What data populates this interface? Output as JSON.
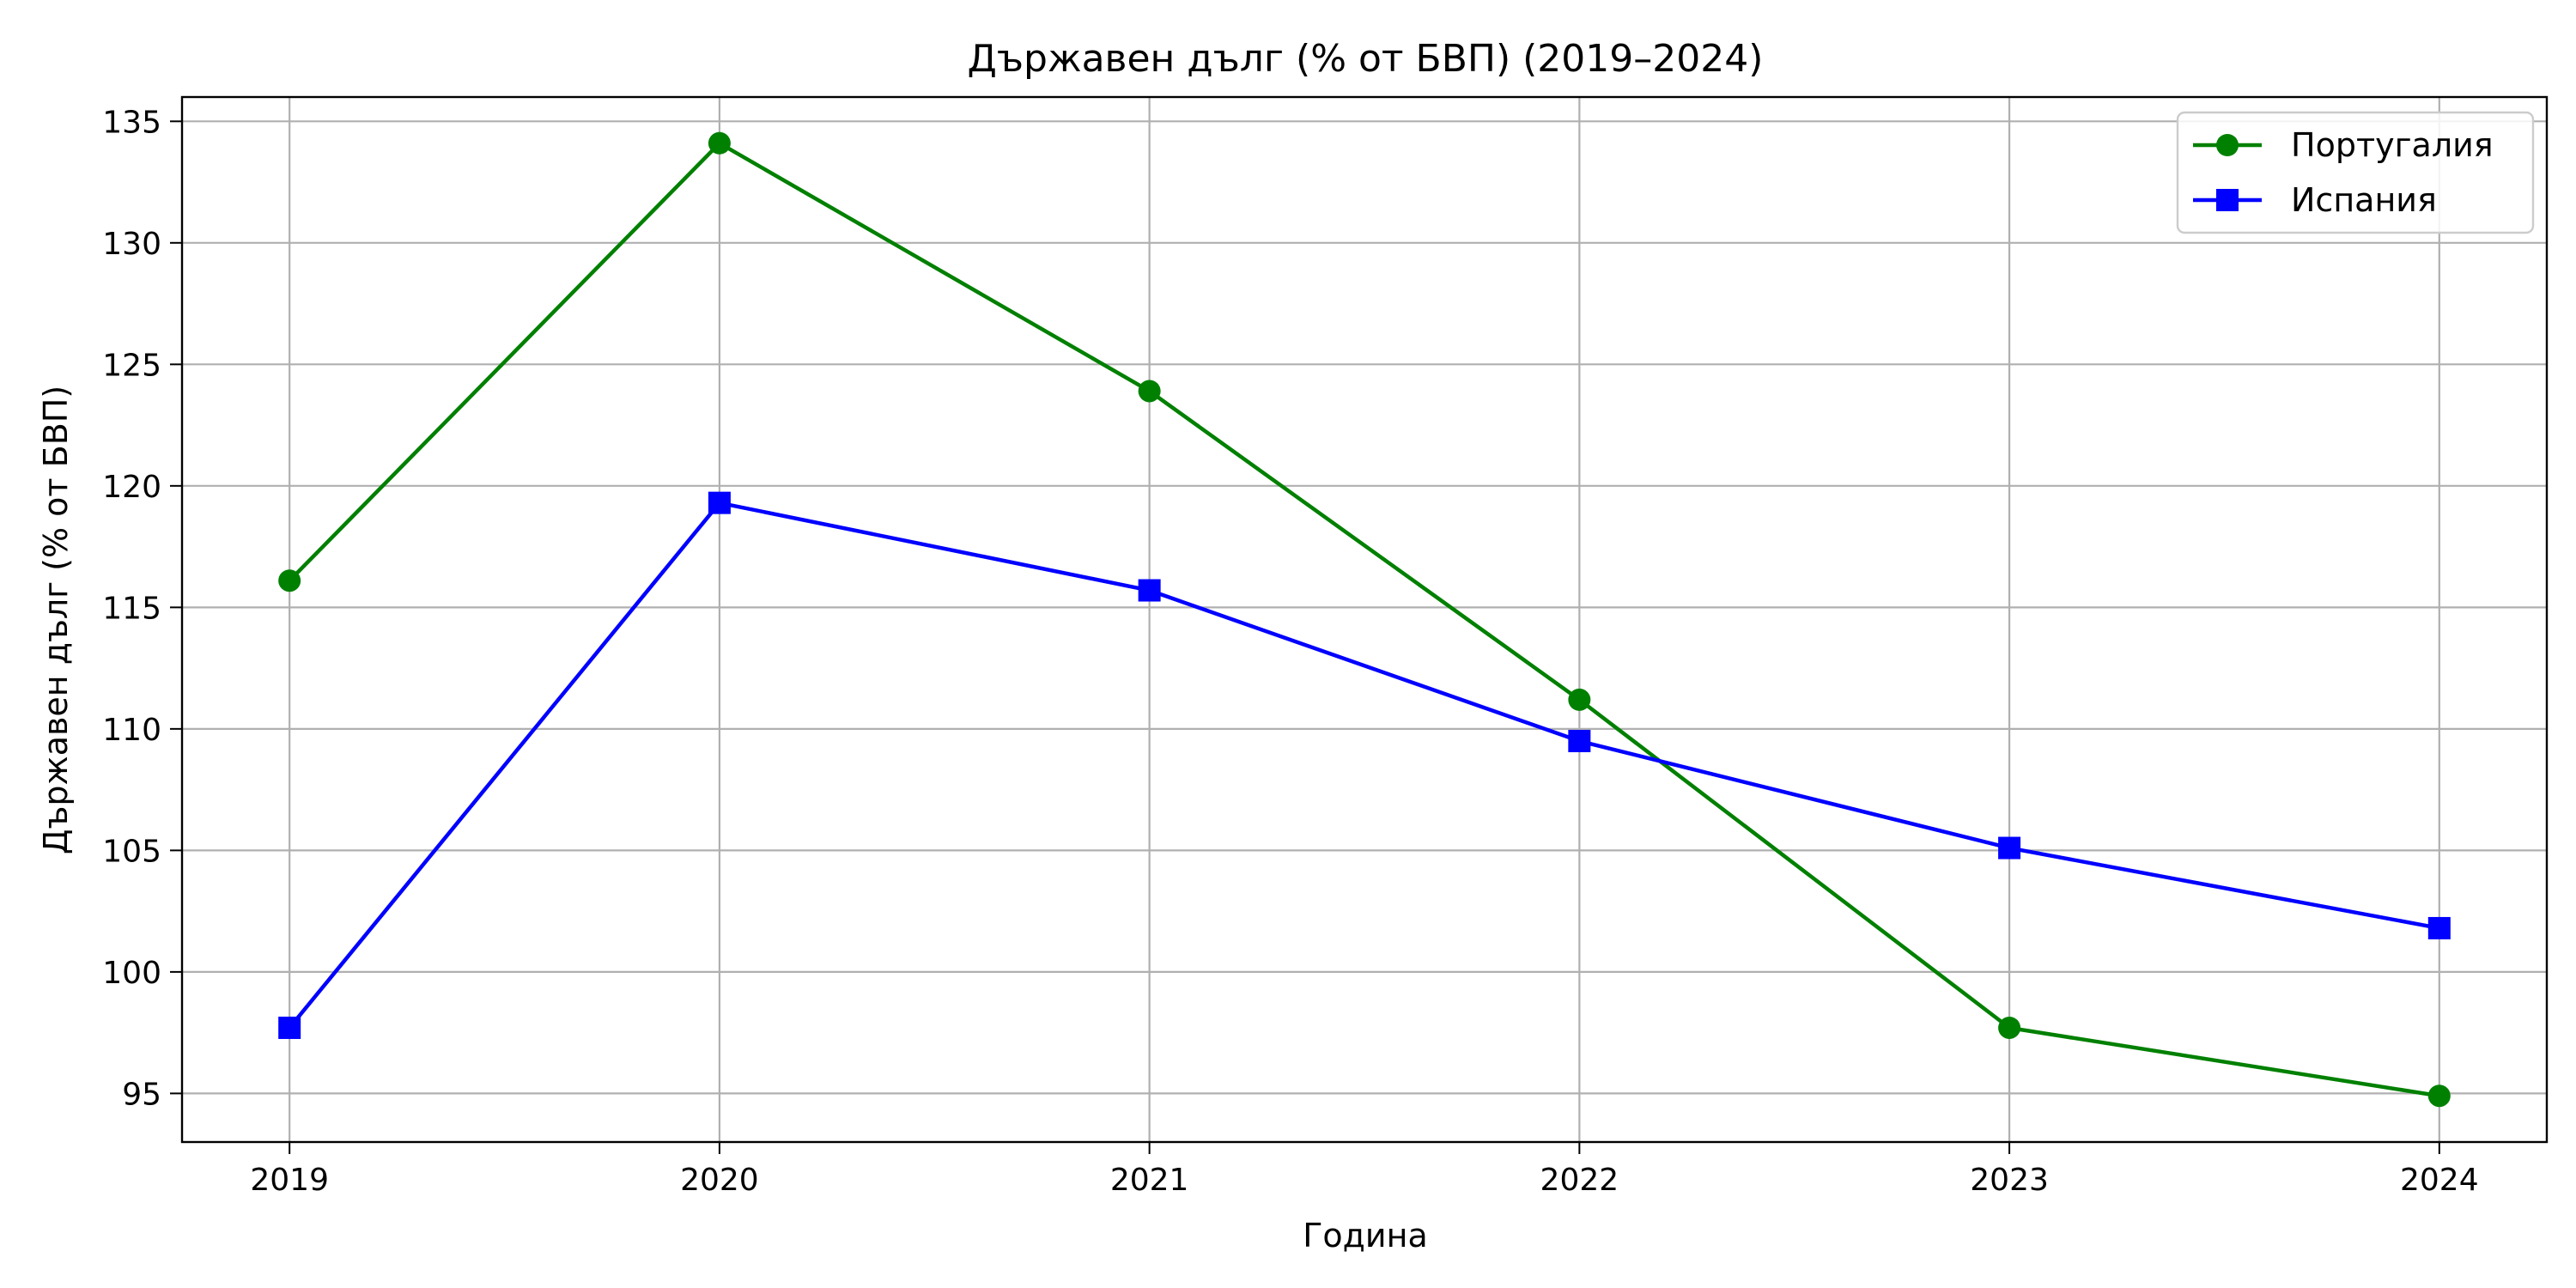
{
  "chart_data": {
    "type": "line",
    "title": "Държавен дълг (% от БВП) (2019–2024)",
    "xlabel": "Година",
    "ylabel": "Държавен дълг (% от БВП)",
    "x": [
      2019,
      2020,
      2021,
      2022,
      2023,
      2024
    ],
    "x_tick_labels": [
      "2019",
      "2020",
      "2021",
      "2022",
      "2023",
      "2024"
    ],
    "ylim": [
      93,
      136
    ],
    "y_ticks": [
      95,
      100,
      105,
      110,
      115,
      120,
      125,
      130,
      135
    ],
    "y_tick_labels": [
      "95",
      "100",
      "105",
      "110",
      "115",
      "120",
      "125",
      "130",
      "135"
    ],
    "grid": true,
    "legend_position": "top-right",
    "series": [
      {
        "name": "Португалия",
        "values": [
          116.1,
          134.1,
          123.9,
          111.2,
          97.7,
          94.9
        ],
        "color": "#008000",
        "marker": "circle"
      },
      {
        "name": "Испания",
        "values": [
          97.7,
          119.3,
          115.7,
          109.5,
          105.1,
          101.8
        ],
        "color": "#0000ff",
        "marker": "square"
      }
    ]
  }
}
